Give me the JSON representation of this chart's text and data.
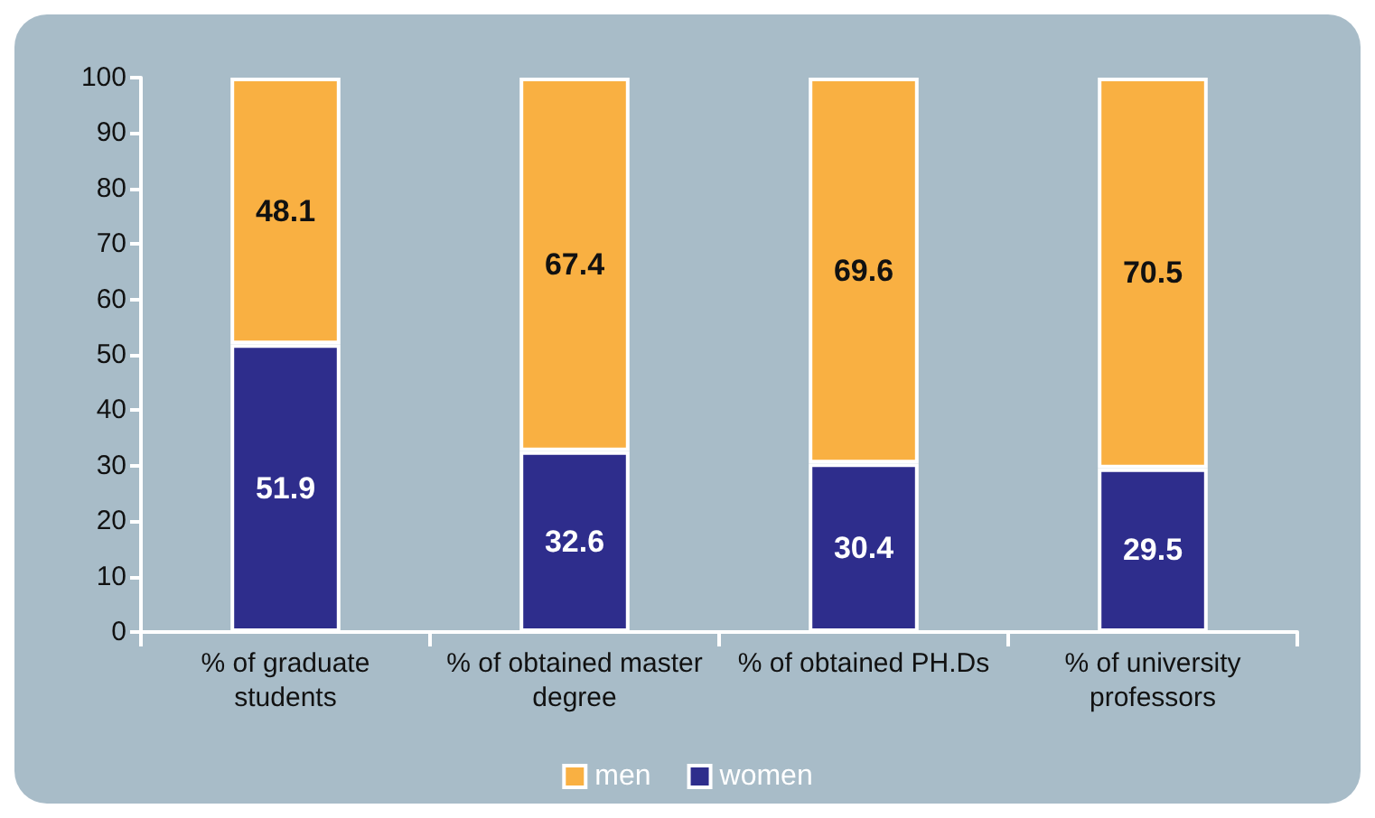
{
  "chart_data": {
    "type": "bar",
    "stacked": true,
    "categories": [
      "% of graduate students",
      "% of obtained master degree",
      "% of obtained PH.Ds",
      "% of university professors"
    ],
    "series": [
      {
        "name": "women",
        "color": "#2e2d8c",
        "values": [
          51.9,
          32.6,
          30.4,
          29.5
        ]
      },
      {
        "name": "men",
        "color": "#f9b042",
        "values": [
          48.1,
          67.4,
          69.6,
          70.5
        ]
      }
    ],
    "ylim": [
      0,
      100
    ],
    "yticks": [
      0,
      10,
      20,
      30,
      40,
      50,
      60,
      70,
      80,
      90,
      100
    ],
    "grid": false,
    "legend": "bottom",
    "data_labels": true
  }
}
